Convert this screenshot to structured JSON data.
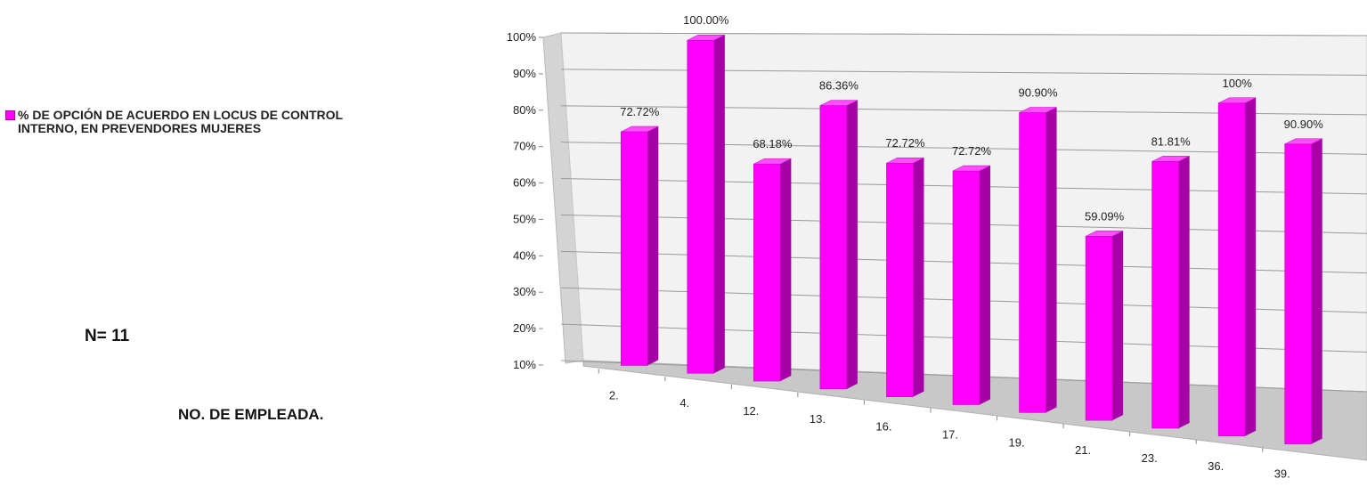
{
  "legend": {
    "label": "% DE OPCIÓN DE ACUERDO  EN LOCUS DE CONTROL\nINTERNO, EN PREVENDORES MUJERES",
    "color": "#ff00ff"
  },
  "annotations": {
    "n_label": "N= 11",
    "x_title": "NO. DE EMPLEADA."
  },
  "chart_data": {
    "type": "bar",
    "style": "3d-column",
    "categories": [
      "2.",
      "4.",
      "12.",
      "13.",
      "16.",
      "17.",
      "19.",
      "21.",
      "23.",
      "36.",
      "39."
    ],
    "series": [
      {
        "name": "% DE OPCIÓN DE ACUERDO  EN LOCUS DE CONTROL INTERNO, EN PREVENDORES MUJERES",
        "values": [
          72.72,
          100.0,
          68.18,
          86.36,
          72.72,
          72.72,
          90.9,
          59.09,
          81.81,
          100,
          90.9
        ],
        "labels": [
          "72.72%",
          "100.00%",
          "68.18%",
          "86.36%",
          "72.72%",
          "72.72%",
          "90.90%",
          "59.09%",
          "81.81%",
          "100%",
          "90.90%"
        ],
        "color": "#ff00ff"
      }
    ],
    "ylim": [
      10,
      100
    ],
    "yticks": [
      "10%",
      "20%",
      "30%",
      "40%",
      "50%",
      "60%",
      "70%",
      "80%",
      "90%",
      "100%"
    ],
    "grid": true,
    "legend_position": "left",
    "xlabel": "NO. DE EMPLEADA.",
    "ylabel": ""
  }
}
